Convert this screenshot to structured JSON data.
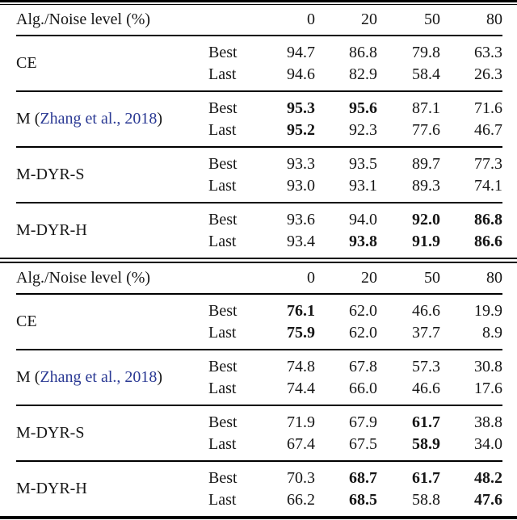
{
  "page": {
    "background": "#ffffff",
    "text_color": "#161616",
    "citation_color": "#2b3a94"
  },
  "tables": [
    {
      "header": {
        "label": "Alg./Noise level (%)",
        "cols": [
          "0",
          "20",
          "50",
          "80"
        ]
      },
      "groups": [
        {
          "name": "CE",
          "rows": [
            {
              "label": "Best",
              "values": [
                {
                  "v": "94.7",
                  "b": false
                },
                {
                  "v": "86.8",
                  "b": false
                },
                {
                  "v": "79.8",
                  "b": false
                },
                {
                  "v": "63.3",
                  "b": false
                }
              ]
            },
            {
              "label": "Last",
              "values": [
                {
                  "v": "94.6",
                  "b": false
                },
                {
                  "v": "82.9",
                  "b": false
                },
                {
                  "v": "58.4",
                  "b": false
                },
                {
                  "v": "26.3",
                  "b": false
                }
              ]
            }
          ]
        },
        {
          "name_prefix": "M (",
          "citation": "Zhang et al., 2018",
          "name_suffix": ")",
          "rows": [
            {
              "label": "Best",
              "values": [
                {
                  "v": "95.3",
                  "b": true
                },
                {
                  "v": "95.6",
                  "b": true
                },
                {
                  "v": "87.1",
                  "b": false
                },
                {
                  "v": "71.6",
                  "b": false
                }
              ]
            },
            {
              "label": "Last",
              "values": [
                {
                  "v": "95.2",
                  "b": true
                },
                {
                  "v": "92.3",
                  "b": false
                },
                {
                  "v": "77.6",
                  "b": false
                },
                {
                  "v": "46.7",
                  "b": false
                }
              ]
            }
          ]
        },
        {
          "name": "M-DYR-S",
          "rows": [
            {
              "label": "Best",
              "values": [
                {
                  "v": "93.3",
                  "b": false
                },
                {
                  "v": "93.5",
                  "b": false
                },
                {
                  "v": "89.7",
                  "b": false
                },
                {
                  "v": "77.3",
                  "b": false
                }
              ]
            },
            {
              "label": "Last",
              "values": [
                {
                  "v": "93.0",
                  "b": false
                },
                {
                  "v": "93.1",
                  "b": false
                },
                {
                  "v": "89.3",
                  "b": false
                },
                {
                  "v": "74.1",
                  "b": false
                }
              ]
            }
          ]
        },
        {
          "name": "M-DYR-H",
          "rows": [
            {
              "label": "Best",
              "values": [
                {
                  "v": "93.6",
                  "b": false
                },
                {
                  "v": "94.0",
                  "b": false
                },
                {
                  "v": "92.0",
                  "b": true
                },
                {
                  "v": "86.8",
                  "b": true
                }
              ]
            },
            {
              "label": "Last",
              "values": [
                {
                  "v": "93.4",
                  "b": false
                },
                {
                  "v": "93.8",
                  "b": true
                },
                {
                  "v": "91.9",
                  "b": true
                },
                {
                  "v": "86.6",
                  "b": true
                }
              ]
            }
          ]
        }
      ]
    },
    {
      "header": {
        "label": "Alg./Noise level (%)",
        "cols": [
          "0",
          "20",
          "50",
          "80"
        ]
      },
      "groups": [
        {
          "name": "CE",
          "rows": [
            {
              "label": "Best",
              "values": [
                {
                  "v": "76.1",
                  "b": true
                },
                {
                  "v": "62.0",
                  "b": false
                },
                {
                  "v": "46.6",
                  "b": false
                },
                {
                  "v": "19.9",
                  "b": false
                }
              ]
            },
            {
              "label": "Last",
              "values": [
                {
                  "v": "75.9",
                  "b": true
                },
                {
                  "v": "62.0",
                  "b": false
                },
                {
                  "v": "37.7",
                  "b": false
                },
                {
                  "v": "8.9",
                  "b": false
                }
              ]
            }
          ]
        },
        {
          "name_prefix": "M (",
          "citation": "Zhang et al., 2018",
          "name_suffix": ")",
          "rows": [
            {
              "label": "Best",
              "values": [
                {
                  "v": "74.8",
                  "b": false
                },
                {
                  "v": "67.8",
                  "b": false
                },
                {
                  "v": "57.3",
                  "b": false
                },
                {
                  "v": "30.8",
                  "b": false
                }
              ]
            },
            {
              "label": "Last",
              "values": [
                {
                  "v": "74.4",
                  "b": false
                },
                {
                  "v": "66.0",
                  "b": false
                },
                {
                  "v": "46.6",
                  "b": false
                },
                {
                  "v": "17.6",
                  "b": false
                }
              ]
            }
          ]
        },
        {
          "name": "M-DYR-S",
          "rows": [
            {
              "label": "Best",
              "values": [
                {
                  "v": "71.9",
                  "b": false
                },
                {
                  "v": "67.9",
                  "b": false
                },
                {
                  "v": "61.7",
                  "b": true
                },
                {
                  "v": "38.8",
                  "b": false
                }
              ]
            },
            {
              "label": "Last",
              "values": [
                {
                  "v": "67.4",
                  "b": false
                },
                {
                  "v": "67.5",
                  "b": false
                },
                {
                  "v": "58.9",
                  "b": true
                },
                {
                  "v": "34.0",
                  "b": false
                }
              ]
            }
          ]
        },
        {
          "name": "M-DYR-H",
          "rows": [
            {
              "label": "Best",
              "values": [
                {
                  "v": "70.3",
                  "b": false
                },
                {
                  "v": "68.7",
                  "b": true
                },
                {
                  "v": "61.7",
                  "b": true
                },
                {
                  "v": "48.2",
                  "b": true
                }
              ]
            },
            {
              "label": "Last",
              "values": [
                {
                  "v": "66.2",
                  "b": false
                },
                {
                  "v": "68.5",
                  "b": true
                },
                {
                  "v": "58.8",
                  "b": false
                },
                {
                  "v": "47.6",
                  "b": true
                }
              ]
            }
          ]
        }
      ]
    }
  ]
}
